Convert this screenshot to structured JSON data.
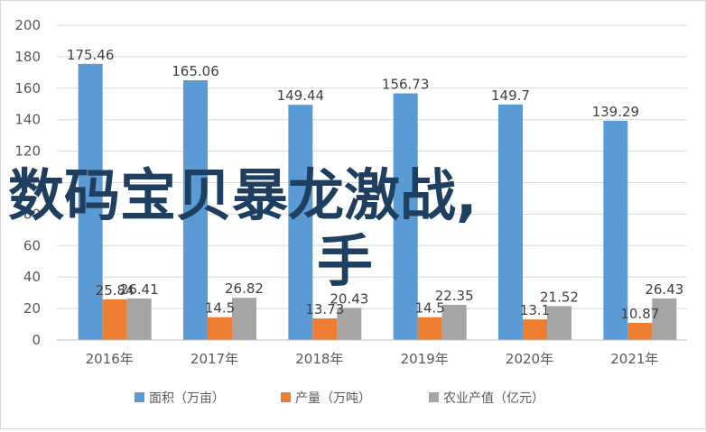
{
  "chart_data": {
    "type": "bar",
    "categories": [
      "2016年",
      "2017年",
      "2018年",
      "2019年",
      "2020年",
      "2021年"
    ],
    "series": [
      {
        "name": "面积（万亩）",
        "color": "#5b9bd5",
        "values": [
          175.46,
          165.06,
          149.44,
          156.73,
          149.7,
          139.29
        ]
      },
      {
        "name": "产量（万吨）",
        "color": "#ed7d31",
        "values": [
          25.84,
          14.5,
          13.73,
          14.5,
          13.1,
          10.87
        ]
      },
      {
        "name": "农业产值（亿元）",
        "color": "#a5a5a5",
        "values": [
          26.41,
          26.82,
          20.43,
          22.35,
          21.52,
          26.43
        ]
      }
    ],
    "data_labels": [
      [
        "175.46",
        "165.06",
        "149.44",
        "156.73",
        "149.7",
        "139.29"
      ],
      [
        "25.84",
        "14.5",
        "13.73",
        "14.5",
        "13.1",
        "10.87"
      ],
      [
        "26.41",
        "26.82",
        "20.43",
        "22.35",
        "21.52",
        "26.43"
      ]
    ],
    "y_ticks": [
      "0",
      "20",
      "40",
      "60",
      "80",
      "100",
      "120",
      "140",
      "160",
      "180",
      "200"
    ],
    "ylim": [
      0,
      200
    ],
    "grid": true,
    "legend_position": "bottom",
    "title": "",
    "xlabel": "",
    "ylabel": ""
  },
  "overlay": {
    "line1": "数码宝贝暴龙激战,",
    "line2": "手",
    "color": "#1f3f61"
  }
}
